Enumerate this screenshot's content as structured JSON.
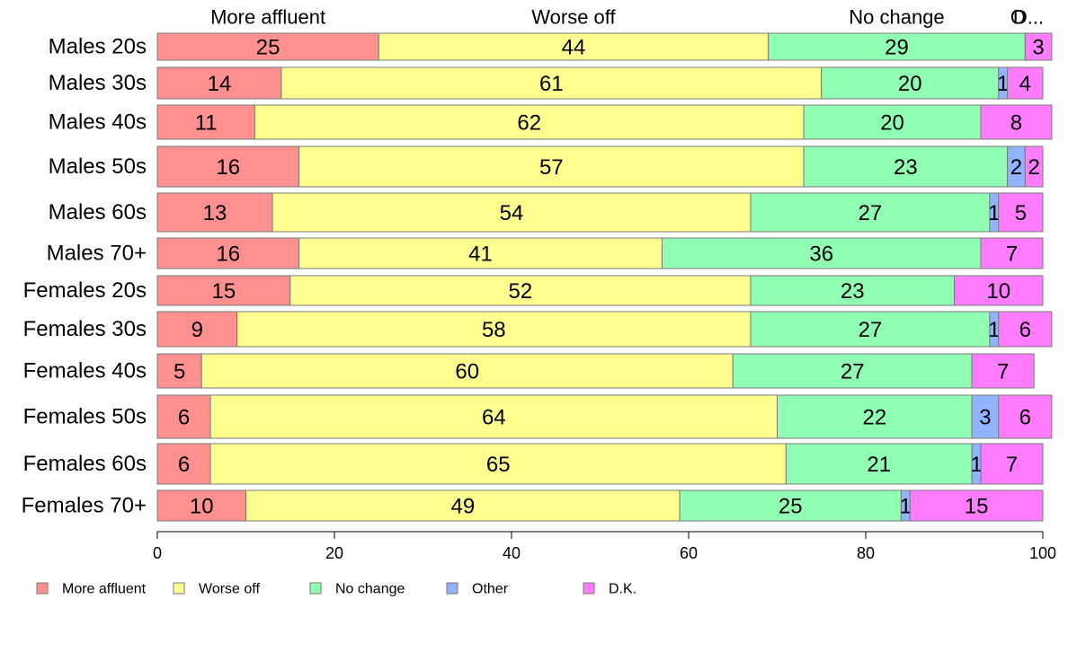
{
  "chart_data": {
    "type": "bar",
    "orientation": "horizontal",
    "stacked": true,
    "categories": [
      "Males 20s",
      "Males 30s",
      "Males 40s",
      "Males 50s",
      "Males 60s",
      "Males 70+",
      "Females 20s",
      "Females 30s",
      "Females 40s",
      "Females 50s",
      "Females 60s",
      "Females 70+"
    ],
    "series": [
      {
        "name": "More affluent",
        "color": "#ff9090",
        "values": [
          25,
          14,
          11,
          16,
          13,
          16,
          15,
          9,
          5,
          6,
          6,
          10
        ]
      },
      {
        "name": "Worse off",
        "color": "#ffff90",
        "values": [
          44,
          61,
          62,
          57,
          54,
          41,
          52,
          58,
          60,
          64,
          65,
          49
        ]
      },
      {
        "name": "No change",
        "color": "#90ffb4",
        "values": [
          29,
          20,
          20,
          23,
          27,
          36,
          23,
          27,
          27,
          22,
          21,
          25
        ]
      },
      {
        "name": "Other",
        "color": "#90b4ff",
        "values": [
          0,
          1,
          0,
          2,
          1,
          0,
          0,
          1,
          0,
          3,
          1,
          1
        ]
      },
      {
        "name": "D.K.",
        "color": "#ff7cff",
        "values": [
          3,
          4,
          8,
          2,
          5,
          7,
          10,
          6,
          7,
          6,
          7,
          15
        ]
      }
    ],
    "segment_labels": [
      [
        "25",
        "44",
        "29",
        "",
        "3"
      ],
      [
        "14",
        "61",
        "20",
        "1",
        "4"
      ],
      [
        "11",
        "62",
        "20",
        "",
        "8"
      ],
      [
        "16",
        "57",
        "23",
        "2",
        "2"
      ],
      [
        "13",
        "54",
        "27",
        "1",
        "5"
      ],
      [
        "16",
        "41",
        "36",
        "",
        "7"
      ],
      [
        "15",
        "52",
        "23",
        "",
        "10"
      ],
      [
        "9",
        "58",
        "27",
        "1",
        "6"
      ],
      [
        "5",
        "60",
        "27",
        "",
        "7"
      ],
      [
        "6",
        "64",
        "22",
        "3",
        "6"
      ],
      [
        "6",
        "65",
        "21",
        "1",
        "7"
      ],
      [
        "10",
        "49",
        "25",
        "1",
        "15"
      ]
    ],
    "top_labels": [
      "More affluent",
      "Worse off",
      "No change",
      "O",
      "D..."
    ],
    "xlim": [
      0,
      100
    ],
    "xticks": [
      0,
      20,
      40,
      60,
      80,
      100
    ],
    "grid": false,
    "legend": {
      "position": "bottom-left"
    }
  }
}
